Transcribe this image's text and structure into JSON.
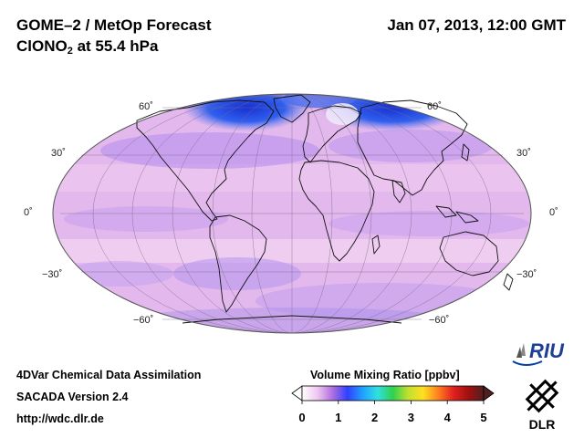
{
  "header": {
    "title_line1": "GOME–2 / MetOp Forecast",
    "species_main": "ClONO",
    "species_sub": "2",
    "species_rest": " at 55.4 hPa",
    "date": "Jan 07, 2013, 12:00 GMT"
  },
  "map": {
    "projection": "Mollweide",
    "latitude_labels": {
      "left": [
        "60˚",
        "30˚",
        "0˚",
        "−30˚",
        "−60˚"
      ],
      "right": [
        "60˚",
        "30˚",
        "0˚",
        "−30˚",
        "−60˚"
      ]
    },
    "colors": {
      "background_field": "#e6b8ec",
      "low_values": "#c9a3f5",
      "high_values_arctic": "#3060f0",
      "graticule": "#7a6a8a",
      "coastline": "#111111"
    }
  },
  "footer": {
    "line1": "4DVar Chemical Data Assimilation",
    "line2": "SACADA Version 2.4",
    "line3": "http://wdc.dlr.de"
  },
  "colorbar": {
    "title": "Volume Mixing Ratio [ppbv]",
    "ticks": [
      "0",
      "1",
      "2",
      "3",
      "4",
      "5"
    ],
    "min": 0,
    "max": 5,
    "stops": [
      "#ffffff",
      "#f0c8f0",
      "#b070e0",
      "#3040ff",
      "#20a0ff",
      "#30e0e0",
      "#30d050",
      "#c0e030",
      "#ffe020",
      "#ff8020",
      "#e02020",
      "#a01010",
      "#502020"
    ]
  },
  "logos": {
    "riu_text": "RIU",
    "dlr_text": "DLR"
  }
}
